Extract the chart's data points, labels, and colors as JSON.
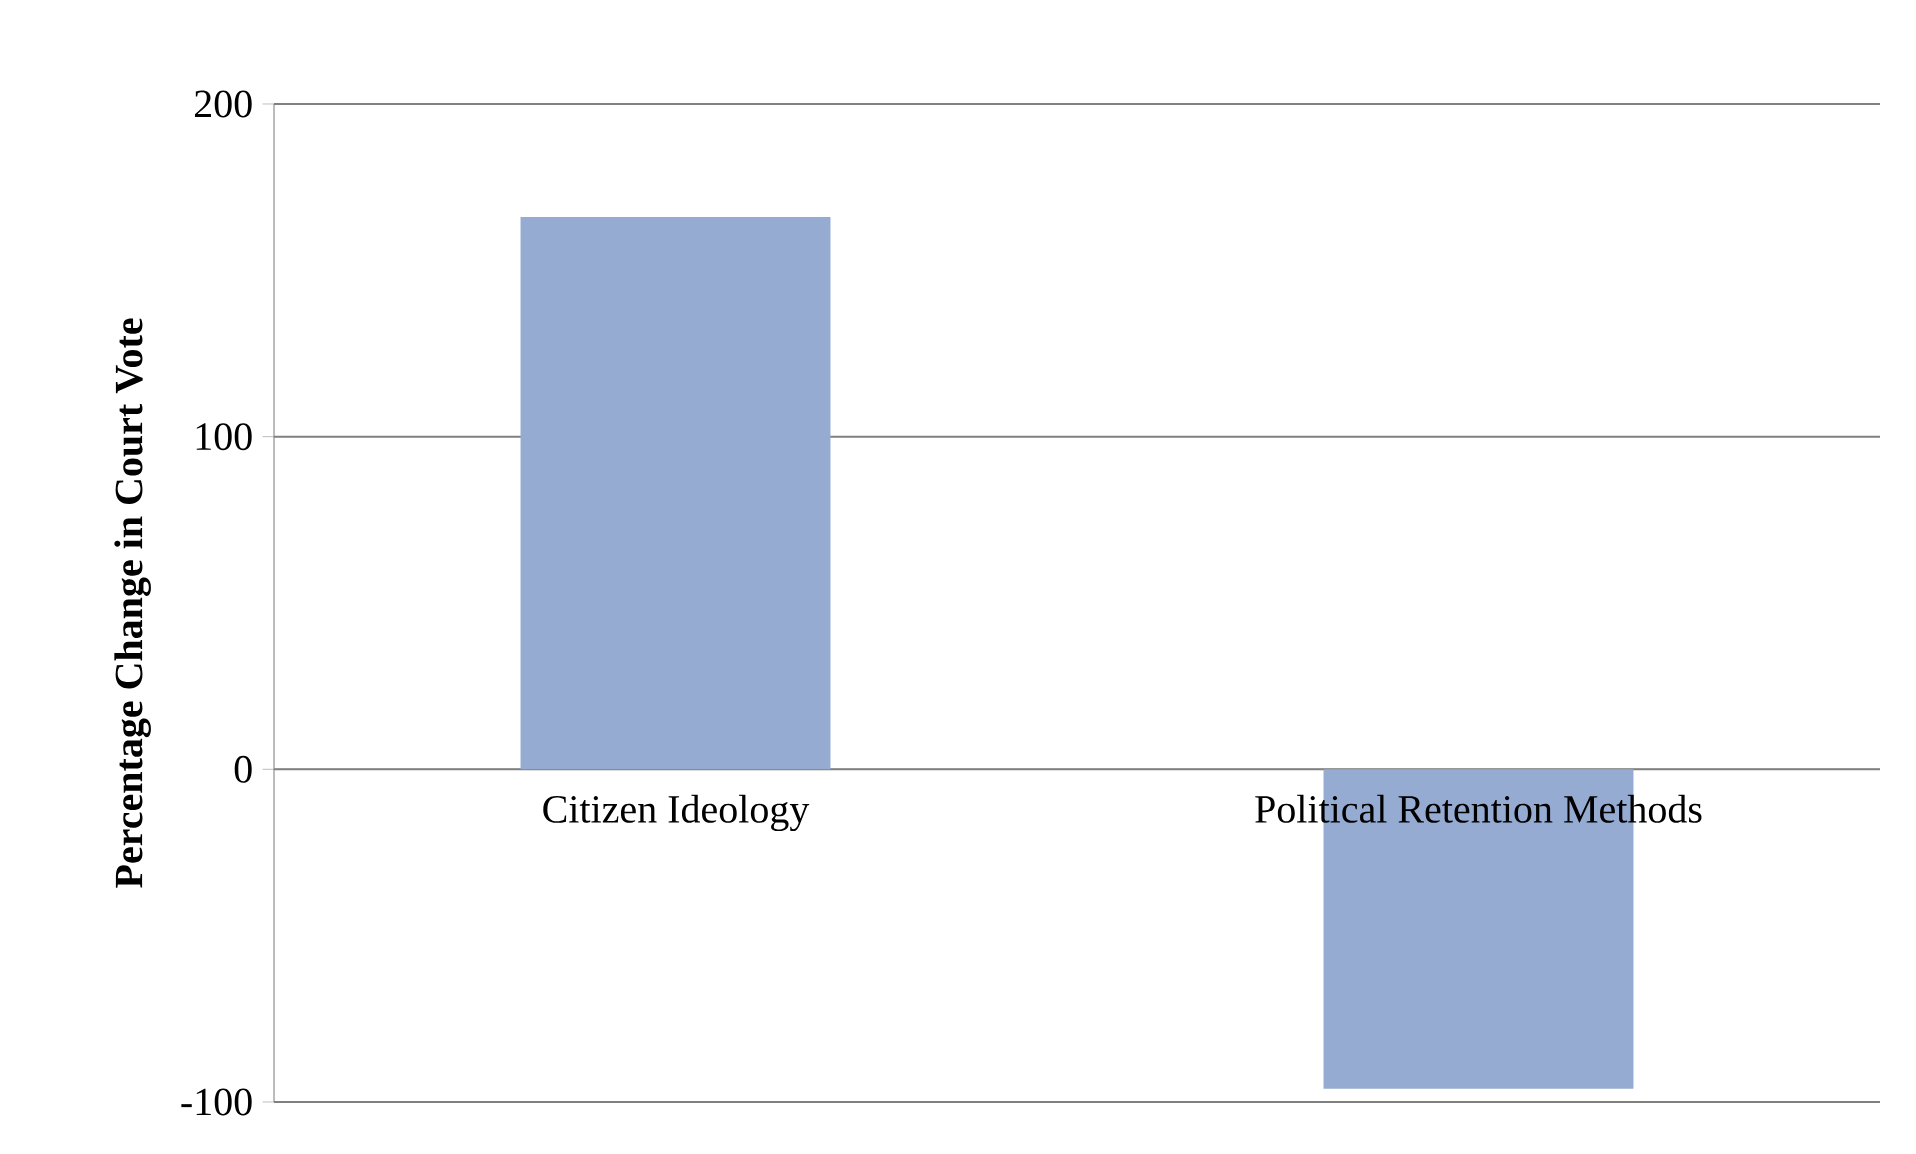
{
  "chart_data": {
    "type": "bar",
    "ylabel": "Percentage Change in Court Vote",
    "categories": [
      "Citizen Ideology",
      "Political Retention Methods"
    ],
    "values": [
      166,
      -96
    ],
    "color": "#95abd2",
    "ylim": [
      -100,
      200
    ],
    "yticks": [
      -100,
      0,
      100,
      200
    ],
    "grid": "y"
  }
}
